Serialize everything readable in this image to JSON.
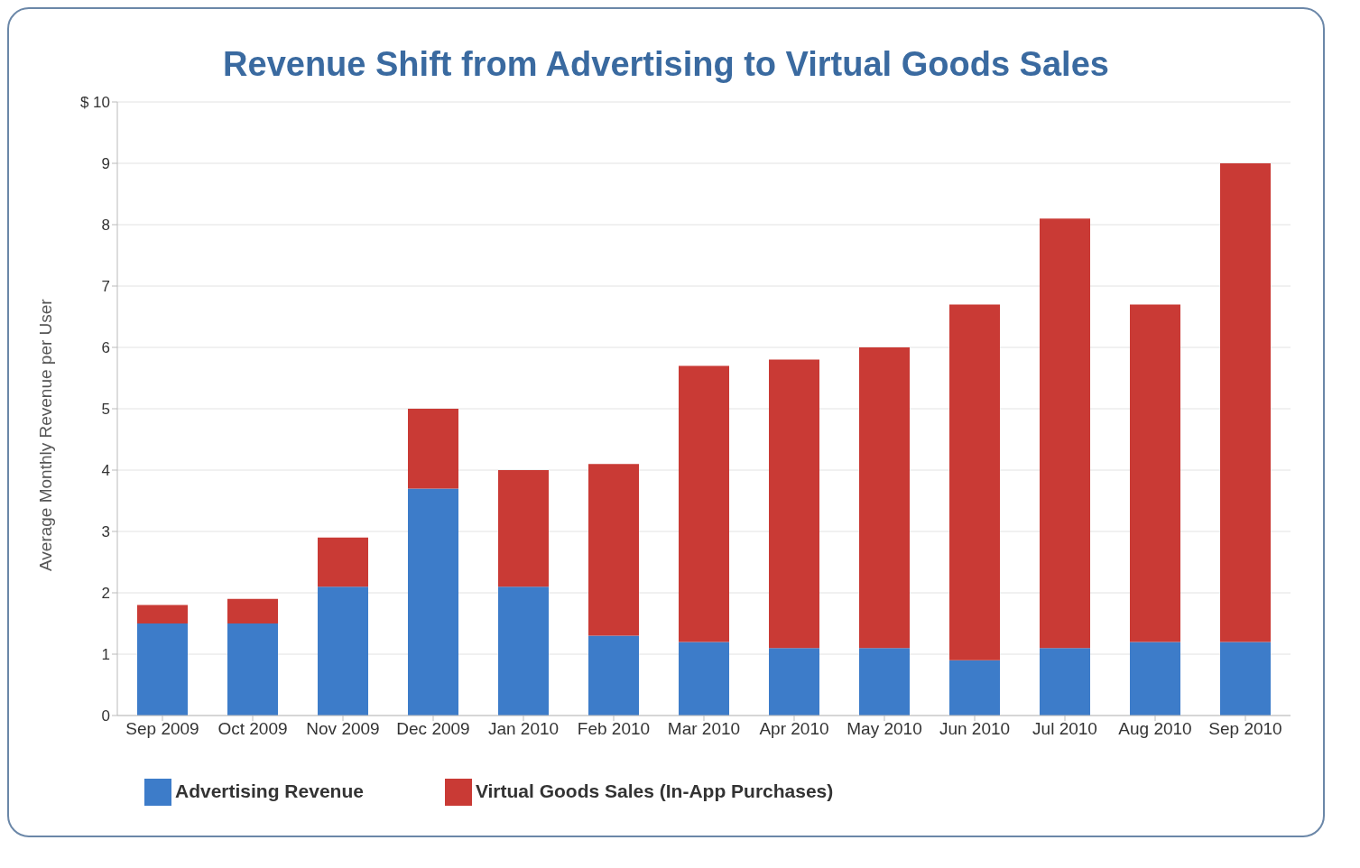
{
  "chart_data": {
    "type": "bar",
    "title": "Revenue Shift from Advertising to Virtual Goods Sales",
    "ylabel": "Average Monthly Revenue per User",
    "categories": [
      "Sep 2009",
      "Oct 2009",
      "Nov 2009",
      "Dec 2009",
      "Jan 2010",
      "Feb 2010",
      "Mar 2010",
      "Apr 2010",
      "May 2010",
      "Jun 2010",
      "Jul 2010",
      "Aug 2010",
      "Sep 2010"
    ],
    "series": [
      {
        "name": "Advertising Revenue",
        "color": "#3d7cc9",
        "values": [
          1.5,
          1.5,
          2.1,
          3.7,
          2.1,
          1.3,
          1.2,
          1.1,
          1.1,
          0.9,
          1.1,
          1.2,
          1.2
        ]
      },
      {
        "name": "Virtual Goods Sales (In-App Purchases)",
        "color": "#c93a35",
        "values": [
          0.3,
          0.4,
          0.8,
          1.3,
          1.9,
          2.8,
          4.5,
          4.7,
          4.9,
          5.8,
          7.0,
          5.5,
          7.8
        ]
      }
    ],
    "stacked": true,
    "ylim": [
      0,
      10
    ],
    "yticks": [
      0,
      1,
      2,
      3,
      4,
      5,
      6,
      7,
      8,
      9,
      {
        "value": 10,
        "label": "$ 10"
      }
    ],
    "grid": "y",
    "legend": "bottom left"
  }
}
